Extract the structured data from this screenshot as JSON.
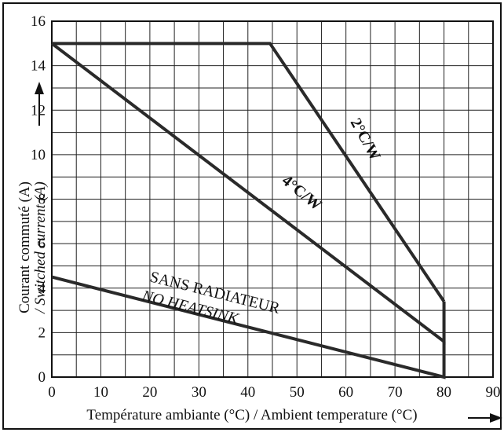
{
  "chart_data": {
    "type": "line",
    "xlabel": "Température ambiante (°C) / Ambient temperature (°C)",
    "ylabel_line1": "Courant commuté (A)",
    "ylabel_line2": "/ Switched current (A)",
    "xlim": [
      0,
      90
    ],
    "ylim": [
      0,
      16
    ],
    "xticks": [
      "0",
      "10",
      "20",
      "30",
      "40",
      "50",
      "60",
      "70",
      "80",
      "90"
    ],
    "yticks": [
      "0",
      "2",
      "4",
      "6",
      "8",
      "10",
      "12",
      "14",
      "16"
    ],
    "grid": true,
    "series": [
      {
        "name": "2°C/W",
        "x": [
          0,
          44.5,
          80
        ],
        "y": [
          15,
          15,
          3.4
        ]
      },
      {
        "name": "4°C/W",
        "x": [
          0,
          80,
          80
        ],
        "y": [
          15,
          1.6,
          3.4
        ]
      },
      {
        "name_line1": "SANS RADIATEUR",
        "name_line2": "NO HEATSINK",
        "x": [
          0,
          80,
          80
        ],
        "y": [
          4.5,
          0,
          1.6
        ]
      }
    ]
  }
}
